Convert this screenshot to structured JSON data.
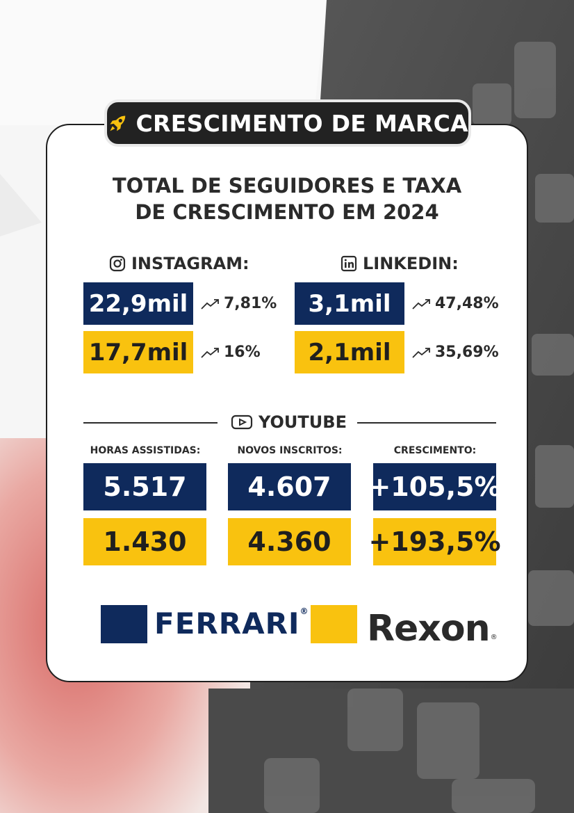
{
  "badge": {
    "title": "CRESCIMENTO DE MARCA",
    "icon": "rocket-icon"
  },
  "headline": {
    "line1": "TOTAL DE SEGUIDORES E TAXA",
    "line2": "DE CRESCIMENTO EM 2024"
  },
  "instagram": {
    "label": "INSTAGRAM:",
    "icon": "instagram-icon",
    "ferrari": {
      "value": "22,9mil",
      "growth": "7,81%"
    },
    "rexon": {
      "value": "17,7mil",
      "growth": "16%"
    }
  },
  "linkedin": {
    "label": "LINKEDIN:",
    "icon": "linkedin-icon",
    "ferrari": {
      "value": "3,1mil",
      "growth": "47,48%"
    },
    "rexon": {
      "value": "2,1mil",
      "growth": "35,69%"
    }
  },
  "youtube": {
    "label": "YOUTUBE",
    "icon": "youtube-play-icon",
    "columns": [
      "HORAS ASSISTIDAS:",
      "NOVOS INSCRITOS:",
      "CRESCIMENTO:"
    ],
    "ferrari": [
      "5.517",
      "4.607",
      "+105,5%"
    ],
    "rexon": [
      "1.430",
      "4.360",
      "+193,5%"
    ]
  },
  "brands": {
    "ferrari": {
      "name": "FERRARI",
      "reg": "®"
    },
    "rexon": {
      "name": "Rexon",
      "reg": "®"
    }
  },
  "colors": {
    "navy": "#0f2a5c",
    "yellow": "#f9c20f",
    "dark": "#222222",
    "text": "#2b2b2b"
  }
}
